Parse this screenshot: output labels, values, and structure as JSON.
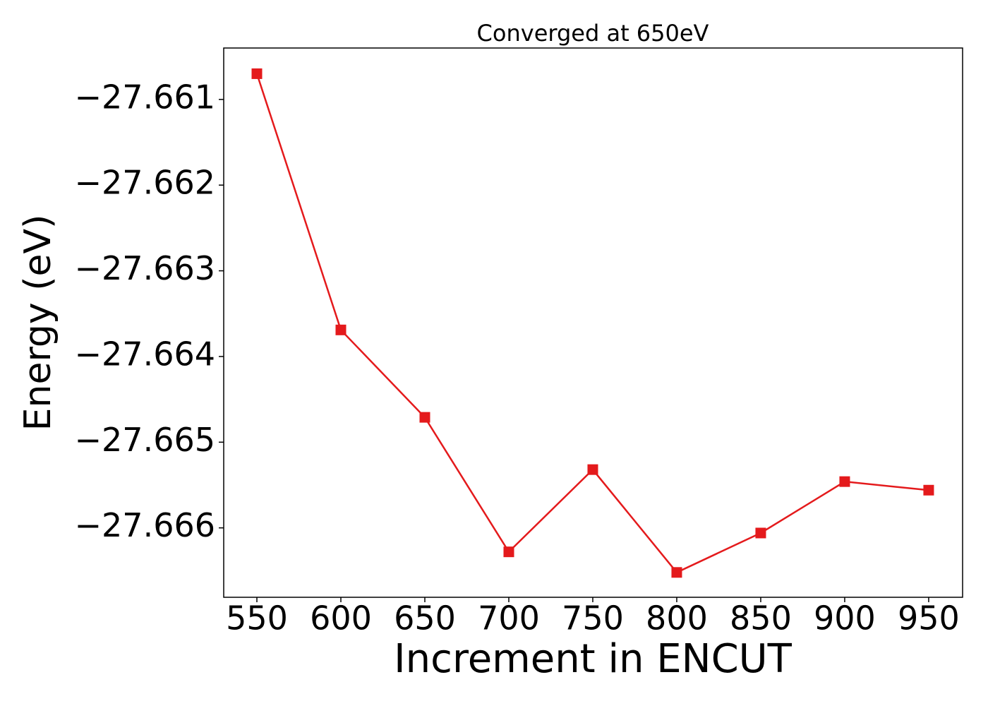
{
  "chart_data": {
    "type": "line",
    "title": "Converged at 650eV",
    "xlabel": "Increment in ENCUT",
    "ylabel": "Energy (eV)",
    "x": [
      550,
      600,
      650,
      700,
      750,
      800,
      850,
      900,
      950
    ],
    "series": [
      {
        "color": "#e41a1c",
        "marker": "square",
        "values": [
          -27.6607,
          -27.66369,
          -27.66471,
          -27.66628,
          -27.66532,
          -27.66652,
          -27.66606,
          -27.66546,
          -27.66556
        ]
      }
    ],
    "xlim": [
      530.25,
      970.2
    ],
    "xticks": [
      550,
      600,
      650,
      700,
      750,
      800,
      850,
      900,
      950
    ],
    "ylim": [
      -27.66681,
      -27.6604
    ],
    "yticks": [
      {
        "value": -27.666,
        "label": "−27.666"
      },
      {
        "value": -27.665,
        "label": "−27.665"
      },
      {
        "value": -27.664,
        "label": "−27.664"
      },
      {
        "value": -27.663,
        "label": "−27.663"
      },
      {
        "value": -27.662,
        "label": "−27.662"
      },
      {
        "value": -27.661,
        "label": "−27.661"
      }
    ],
    "grid": false
  }
}
